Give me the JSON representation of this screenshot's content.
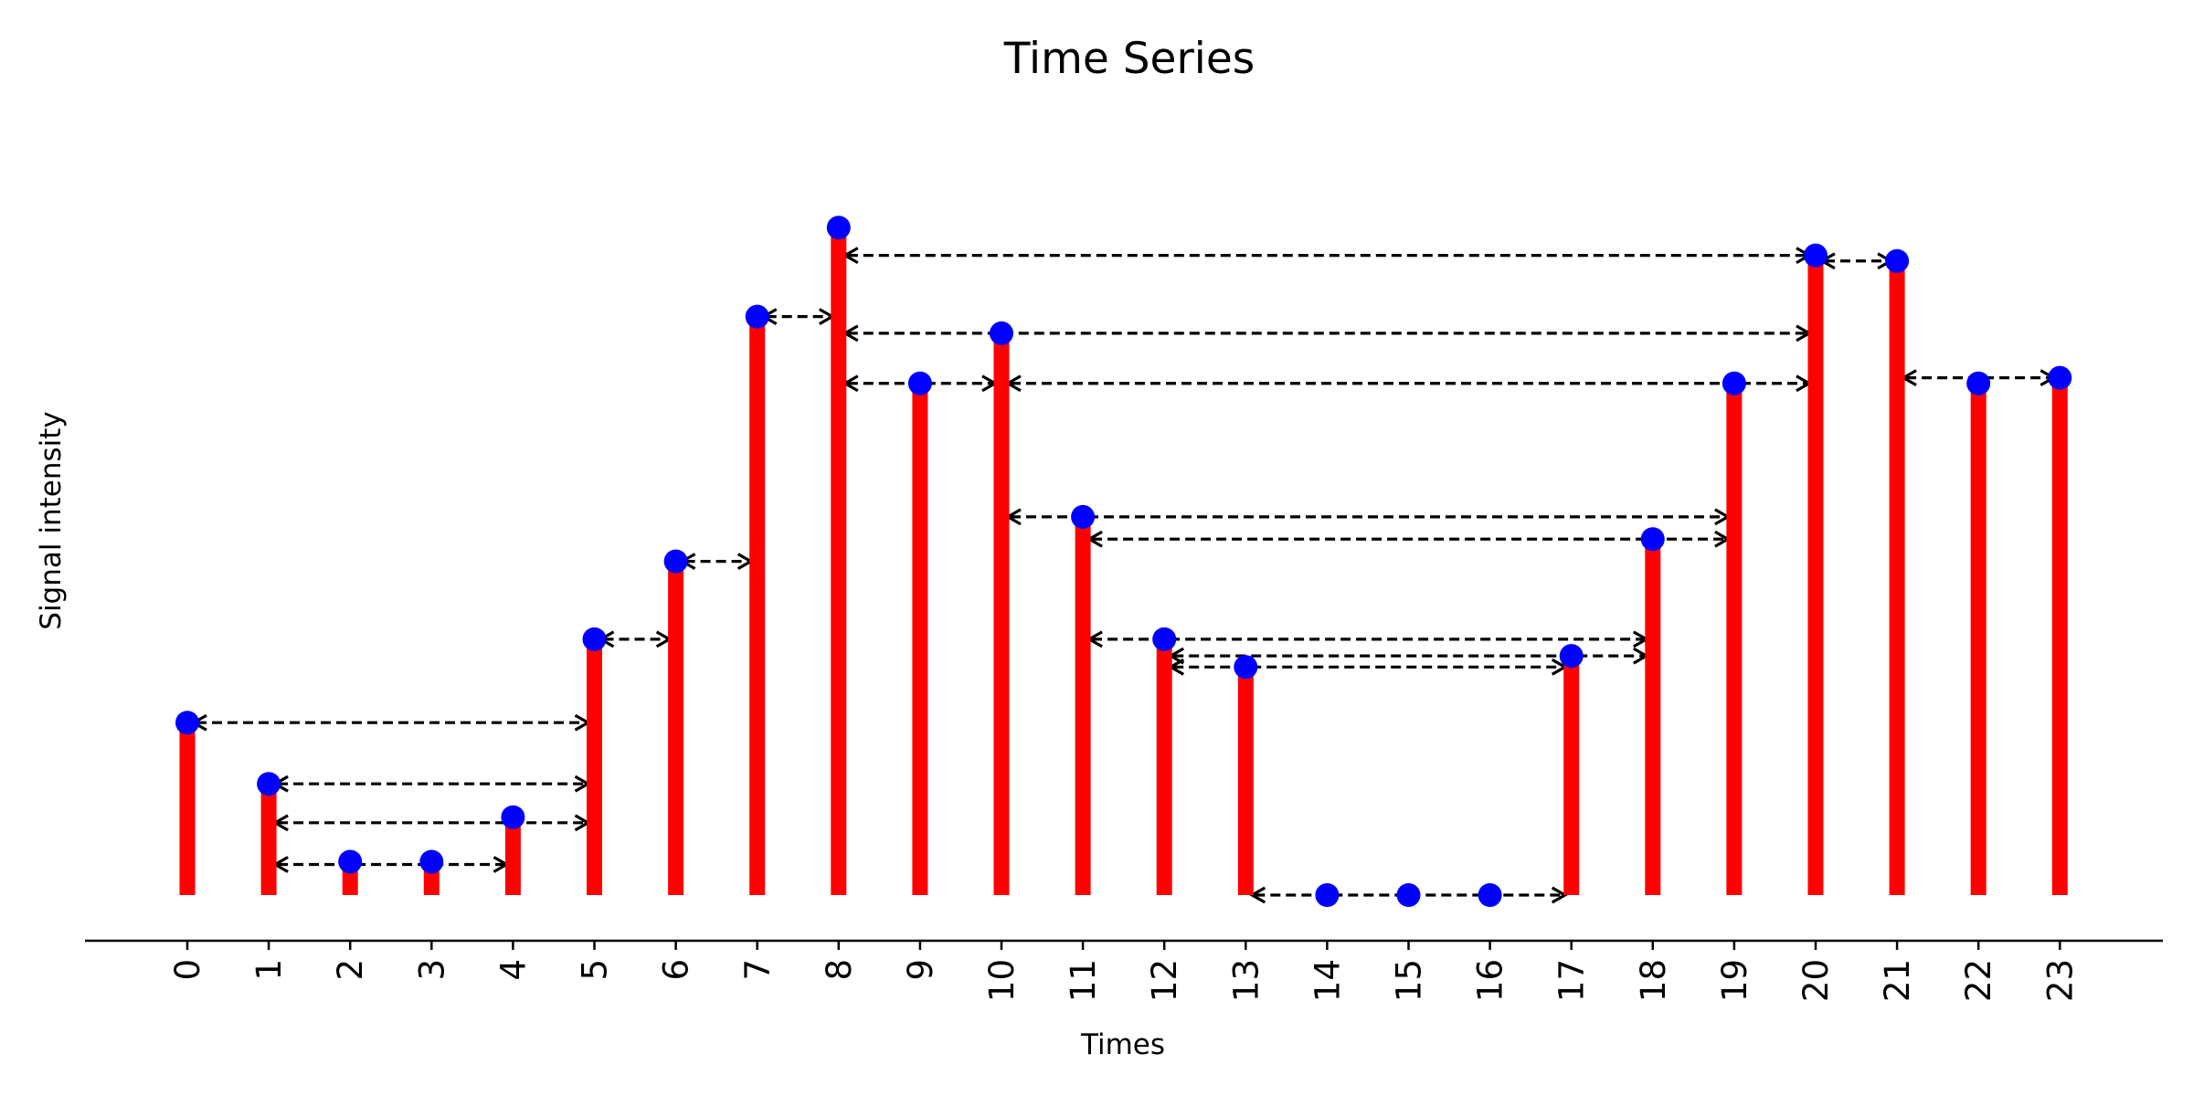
{
  "chart_data": {
    "type": "stem",
    "title": "Time Series",
    "xlabel": "Times",
    "ylabel": "Signal intensity",
    "x": [
      0,
      1,
      2,
      3,
      4,
      5,
      6,
      7,
      8,
      9,
      10,
      11,
      12,
      13,
      14,
      15,
      16,
      17,
      18,
      19,
      20,
      21,
      22,
      23
    ],
    "values": [
      0.31,
      0.2,
      0.06,
      0.06,
      0.14,
      0.46,
      0.6,
      1.04,
      1.2,
      0.92,
      1.01,
      0.68,
      0.46,
      0.41,
      0.0,
      0.0,
      0.0,
      0.43,
      0.64,
      0.92,
      1.15,
      1.14,
      0.92,
      0.93
    ],
    "ylim": [
      -0.07,
      1.3
    ],
    "xlim": [
      -1.2,
      24.3
    ],
    "stem_color": "#ff0000",
    "marker_color": "#0000ff",
    "arrow_color": "#000000",
    "grid": false,
    "connections": [
      {
        "from": 0,
        "to": 5,
        "y": 0.31
      },
      {
        "from": 1,
        "to": 5,
        "y": 0.2
      },
      {
        "from": 1,
        "to": 5,
        "y": 0.13
      },
      {
        "from": 1,
        "to": 4,
        "y": 0.055
      },
      {
        "from": 5,
        "to": 6,
        "y": 0.46
      },
      {
        "from": 6,
        "to": 7,
        "y": 0.6
      },
      {
        "from": 7,
        "to": 8,
        "y": 1.04
      },
      {
        "from": 8,
        "to": 20,
        "y": 1.15
      },
      {
        "from": 8,
        "to": 20,
        "y": 1.01
      },
      {
        "from": 8,
        "to": 10,
        "y": 0.92
      },
      {
        "from": 10,
        "to": 20,
        "y": 0.92
      },
      {
        "from": 20,
        "to": 21,
        "y": 1.14
      },
      {
        "from": 21,
        "to": 23,
        "y": 0.93
      },
      {
        "from": 10,
        "to": 19,
        "y": 0.68
      },
      {
        "from": 11,
        "to": 19,
        "y": 0.64
      },
      {
        "from": 11,
        "to": 18,
        "y": 0.46
      },
      {
        "from": 12,
        "to": 18,
        "y": 0.43
      },
      {
        "from": 12,
        "to": 17,
        "y": 0.41
      },
      {
        "from": 13,
        "to": 17,
        "y": 0.0
      }
    ]
  }
}
